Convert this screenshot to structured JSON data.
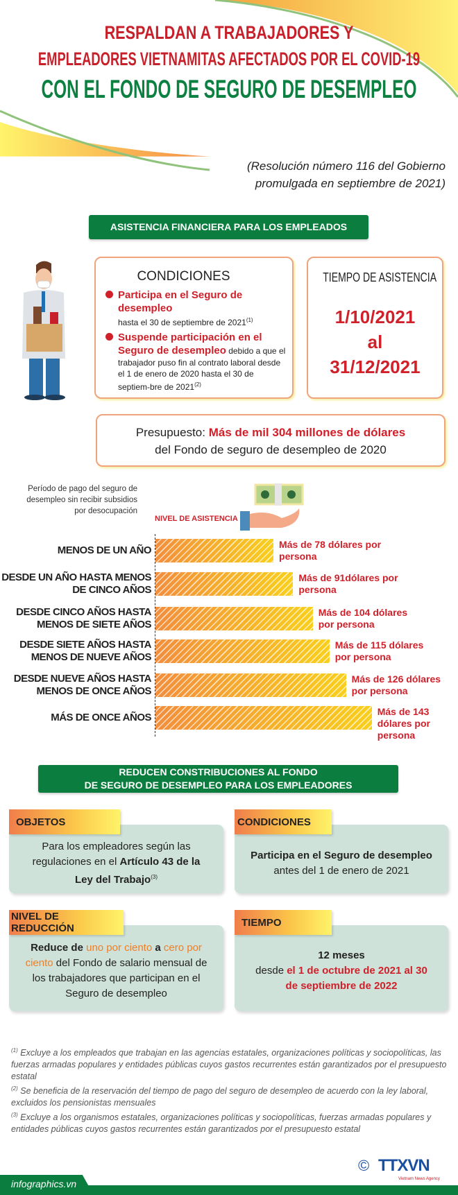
{
  "header": {
    "title_line1": "RESPALDAN A TRABAJADORES Y",
    "title_line2": "EMPLEADORES VIETNAMITAS AFECTADOS POR EL COVID-19",
    "title_line3": "CON EL FONDO DE SEGURO DE DESEMPLEO",
    "subtitle_line1": "(Resolución número 116 del Gobierno",
    "subtitle_line2": "promulgada en septiembre de 2021)"
  },
  "section1": {
    "banner": "ASISTENCIA FINANCIERA PARA LOS EMPLEADOS",
    "conditions": {
      "title": "CONDICIONES",
      "item1_bold": "Participa en el Seguro de desempleo",
      "item1_text": "hasta el 30 de septiembre de 2021",
      "item1_note": "(1)",
      "item2_bold": "Suspende participación en el Seguro de desempleo",
      "item2_text": " debido a que el trabajador puso fin al contrato laboral desde el 1 de enero de 2020 hasta el 30 de septiem-bre de 2021",
      "item2_note": "(2)"
    },
    "time": {
      "title": "TIEMPO DE ASISTENCIA",
      "from": "1/10/2021",
      "connector": "al",
      "to": "31/12/2021"
    },
    "budget": {
      "label": "Presupuesto: ",
      "amount": "Más de mil 304 millones de dólares",
      "source": "del Fondo de seguro de desempleo de 2020"
    }
  },
  "chart_data": {
    "type": "bar",
    "orientation": "horizontal",
    "title": "Período de pago del seguro de desempleo sin recibir subsidios por desocupación",
    "value_label": "NIVEL DE ASISTENCIA",
    "categories": [
      "MENOS DE UN AÑO",
      "DESDE UN AÑO HASTA MENOS DE CINCO AÑOS",
      "DESDE CINCO AÑOS HASTA MENOS DE SIETE AÑOS",
      "DESDE SIETE AÑOS HASTA MENOS DE NUEVE AÑOS",
      "DESDE NUEVE AÑOS HASTA MENOS DE ONCE AÑOS",
      "MÁS DE ONCE AÑOS"
    ],
    "values": [
      78,
      91,
      104,
      115,
      126,
      143
    ],
    "unit": "USD por persona",
    "data_labels": [
      "Más de 78 dólares por persona",
      "Más de 91dólares por persona",
      "Más de 104 dólares por persona",
      "Más de 115 dólares por persona",
      "Más de 126 dólares por persona",
      "Más de 143 dólares por persona"
    ]
  },
  "section2": {
    "banner_line1": "REDUCEN CONSTRIBUCIONES AL FONDO",
    "banner_line2": "DE SEGURO DE DESEMPLEO PARA LOS EMPLEADORES",
    "objetos": {
      "tab": "OBJETOS",
      "text1": "Para los empleadores según las regulaciones en el ",
      "bold": "Artículo 43 de la Ley del Trabajo",
      "note": "(3)"
    },
    "condiciones": {
      "tab": "CONDICIONES",
      "bold": "Participa en el Seguro de desempleo",
      "text": " antes del 1 de enero de 2021"
    },
    "nivel": {
      "tab": "NIVEL DE REDUCCIÓN",
      "t1": "Reduce de ",
      "o1": "uno por ciento",
      "t2": " a ",
      "o2": "cero por ciento",
      "t3": " del Fondo de salario mensual de los trabajadores que participan en el Seguro de desempleo"
    },
    "tiempo": {
      "tab": "TIEMPO",
      "line1": "12 meses",
      "t1": "desde ",
      "red": "el 1 de octubre de 2021 al 30 de septiembre de 2022"
    }
  },
  "footnotes": [
    {
      "mark": "(1)",
      "text": " Excluye a los empleados que trabajan en las agencias estatales, organizaciones políticas y sociopolíticas, las fuerzas armadas populares y entidades públicas cuyos gastos recurrentes están garantizados por el presupuesto estatal"
    },
    {
      "mark": "(2)",
      "text": " Se beneficia de la reservación del tiempo de pago del seguro de desempleo de acuerdo con la ley laboral, excluidos los pensionistas mensuales"
    },
    {
      "mark": "(3)",
      "text": " Excluye a los organismos estatales, organizaciones políticas y sociopolíticas, fuerzas armadas populares y entidades públicas cuyos gastos recurrentes están garantizados por el presupuesto estatal"
    }
  ],
  "footer": {
    "site": "infographics.vn",
    "logo": "TTXVN",
    "logo_sub": "Vietnam News Agency",
    "copyright": "©"
  },
  "colors": {
    "red": "#c8202a",
    "green": "#0b7d3e",
    "orange": "#f07e25",
    "card": "#cfe2da"
  }
}
